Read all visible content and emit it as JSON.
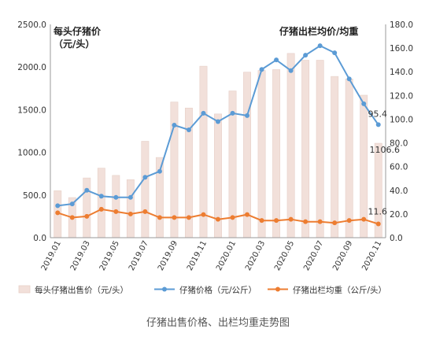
{
  "chart_data": {
    "type": "bar",
    "categories": [
      "2019.01",
      "2019.02",
      "2019.03",
      "2019.04",
      "2019.05",
      "2019.06",
      "2019.07",
      "2019.08",
      "2019.09",
      "2019.10",
      "2019.11",
      "2019.12",
      "2020.01",
      "2020.02",
      "2020.03",
      "2020.04",
      "2020.05",
      "2020.06",
      "2020.07",
      "2020.08",
      "2020.09",
      "2020.10",
      "2020.11"
    ],
    "x_tick_labels": [
      "2019.01",
      "2019.03",
      "2019.05",
      "2019.07",
      "2019.09",
      "2019.11",
      "2020.01",
      "2020.03",
      "2020.05",
      "2020.07",
      "2020.09",
      "2020.11"
    ],
    "left_axis": {
      "title_line1": "每头仔猪价",
      "title_line2": "（元/头）",
      "ylim": [
        0,
        2500
      ],
      "ticks": [
        "0.0",
        "500.0",
        "1000.0",
        "1500.0",
        "2000.0",
        "2500.0"
      ]
    },
    "right_axis": {
      "title": "仔猪出栏均价/均重",
      "ylim": [
        0,
        180
      ],
      "ticks": [
        "0.0",
        "20.0",
        "40.0",
        "60.0",
        "80.0",
        "100.0",
        "120.0",
        "140.0",
        "160.0",
        "180.0"
      ]
    },
    "series": [
      {
        "name": "每头仔猪出售价（元/头）",
        "type": "bar",
        "axis": "left",
        "color": "#f2e0da",
        "values": [
          550,
          470,
          700,
          815,
          730,
          680,
          1130,
          940,
          1590,
          1520,
          2010,
          1450,
          1720,
          1940,
          1960,
          1970,
          2160,
          2080,
          2080,
          1890,
          1860,
          1670,
          1106.6
        ]
      },
      {
        "name": "仔猪价格（元/公斤）",
        "type": "line",
        "axis": "right",
        "color": "#5b9bd5",
        "values": [
          27,
          28.5,
          40,
          35,
          34,
          34,
          51,
          56,
          95,
          91,
          105,
          98,
          105,
          103,
          142,
          150,
          141,
          154,
          162,
          156,
          134,
          113,
          95.4
        ]
      },
      {
        "name": "仔猪出栏均重（公斤/头）",
        "type": "line",
        "axis": "right",
        "color": "#ed7d31",
        "values": [
          21,
          17,
          18,
          24,
          22,
          20,
          22,
          17,
          17,
          17,
          19.5,
          15.5,
          17,
          19.5,
          14.5,
          14.5,
          15.5,
          13.5,
          13.5,
          12.5,
          14.5,
          15.5,
          11.6
        ]
      }
    ],
    "data_labels": [
      "95.4",
      "1106.6",
      "11.6"
    ],
    "caption": "仔猪出售价格、出栏均重走势图",
    "grid": false,
    "legend_position": "bottom"
  }
}
